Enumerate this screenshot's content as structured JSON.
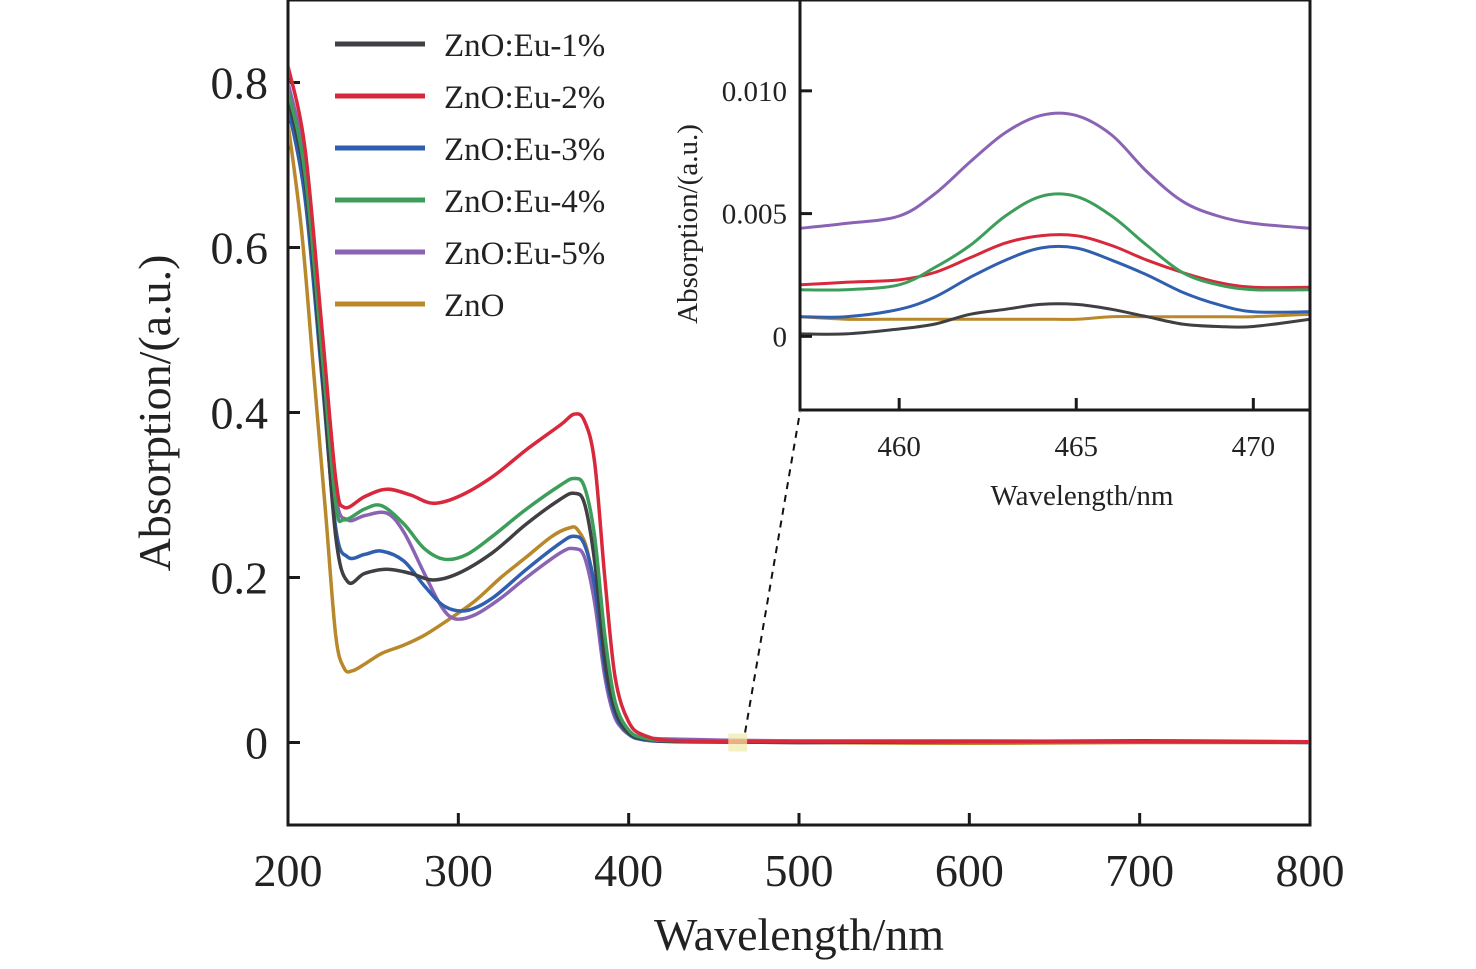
{
  "chart_data": [
    {
      "id": "main",
      "type": "line",
      "title": "",
      "xlabel": "Wavelength/nm",
      "ylabel": "Absorption/(a.u.)",
      "xlim": [
        200,
        800
      ],
      "ylim": [
        -0.1,
        0.9
      ],
      "xticks": [
        200,
        300,
        400,
        500,
        600,
        700,
        800
      ],
      "xtick_labels": [
        "200",
        "300",
        "400",
        "500",
        "600",
        "700",
        "800"
      ],
      "yticks": [
        0,
        0.2,
        0.4,
        0.6,
        0.8
      ],
      "ytick_labels": [
        "0",
        "0.2",
        "0.4",
        "0.6",
        "0.8"
      ],
      "grid": false,
      "legend_position": "top-left",
      "series": [
        {
          "name": "ZnO:Eu-1%",
          "color": "#3f3f44",
          "x": [
            200,
            210,
            220,
            228,
            235,
            245,
            258,
            272,
            285,
            300,
            320,
            340,
            360,
            368,
            374,
            380,
            386,
            392,
            400,
            410,
            430,
            500,
            600,
            700,
            800
          ],
          "y": [
            0.78,
            0.68,
            0.45,
            0.25,
            0.195,
            0.205,
            0.21,
            0.205,
            0.197,
            0.205,
            0.23,
            0.265,
            0.295,
            0.302,
            0.29,
            0.22,
            0.1,
            0.04,
            0.012,
            0.004,
            0.001,
            0.0,
            0.001,
            0.002,
            0.001
          ]
        },
        {
          "name": "ZnO:Eu-2%",
          "color": "#d8283c",
          "x": [
            200,
            210,
            220,
            228,
            233,
            245,
            258,
            272,
            285,
            300,
            320,
            340,
            360,
            368,
            374,
            380,
            386,
            392,
            400,
            410,
            430,
            500,
            600,
            700,
            800
          ],
          "y": [
            0.82,
            0.72,
            0.5,
            0.32,
            0.285,
            0.298,
            0.307,
            0.3,
            0.29,
            0.298,
            0.322,
            0.355,
            0.385,
            0.398,
            0.39,
            0.34,
            0.2,
            0.08,
            0.025,
            0.008,
            0.002,
            0.001,
            0.001,
            0.001,
            0.001
          ]
        },
        {
          "name": "ZnO:Eu-3%",
          "color": "#2f5fae",
          "x": [
            200,
            210,
            220,
            228,
            235,
            245,
            255,
            268,
            280,
            292,
            305,
            320,
            340,
            360,
            368,
            374,
            380,
            386,
            392,
            400,
            410,
            430,
            500,
            600,
            700,
            800
          ],
          "y": [
            0.77,
            0.66,
            0.44,
            0.26,
            0.225,
            0.228,
            0.232,
            0.22,
            0.19,
            0.165,
            0.16,
            0.175,
            0.21,
            0.242,
            0.25,
            0.24,
            0.19,
            0.09,
            0.035,
            0.01,
            0.003,
            0.001,
            0.0,
            0.001,
            0.001,
            0.0
          ]
        },
        {
          "name": "ZnO:Eu-4%",
          "color": "#3d9d5b",
          "x": [
            200,
            210,
            220,
            228,
            233,
            245,
            255,
            268,
            280,
            292,
            305,
            320,
            340,
            360,
            368,
            374,
            380,
            386,
            392,
            400,
            410,
            430,
            500,
            600,
            700,
            800
          ],
          "y": [
            0.79,
            0.69,
            0.47,
            0.29,
            0.27,
            0.283,
            0.287,
            0.265,
            0.235,
            0.222,
            0.228,
            0.25,
            0.283,
            0.312,
            0.32,
            0.31,
            0.25,
            0.13,
            0.05,
            0.015,
            0.005,
            0.002,
            0.001,
            0.001,
            0.001,
            0.001
          ]
        },
        {
          "name": "ZnO:Eu-5%",
          "color": "#8a63b4",
          "x": [
            200,
            210,
            220,
            228,
            235,
            245,
            258,
            268,
            280,
            290,
            298,
            310,
            325,
            340,
            360,
            368,
            374,
            380,
            386,
            392,
            400,
            410,
            430,
            500,
            600,
            700,
            800
          ],
          "y": [
            0.8,
            0.7,
            0.48,
            0.3,
            0.27,
            0.275,
            0.278,
            0.255,
            0.205,
            0.165,
            0.15,
            0.155,
            0.175,
            0.2,
            0.23,
            0.235,
            0.225,
            0.17,
            0.08,
            0.03,
            0.012,
            0.006,
            0.004,
            0.002,
            0.002,
            0.001,
            0.001
          ]
        },
        {
          "name": "ZnO",
          "color": "#b8882a",
          "x": [
            200,
            208,
            215,
            222,
            228,
            233,
            238,
            245,
            255,
            268,
            280,
            295,
            310,
            325,
            340,
            355,
            365,
            370,
            376,
            382,
            388,
            395,
            405,
            420,
            500,
            600,
            700,
            800
          ],
          "y": [
            0.75,
            0.62,
            0.45,
            0.28,
            0.13,
            0.09,
            0.087,
            0.095,
            0.108,
            0.118,
            0.13,
            0.15,
            0.172,
            0.2,
            0.225,
            0.25,
            0.26,
            0.258,
            0.23,
            0.15,
            0.06,
            0.02,
            0.006,
            0.002,
            0.0,
            -0.001,
            0.0,
            0.0
          ]
        }
      ]
    },
    {
      "id": "inset",
      "type": "line",
      "title": "",
      "xlabel": "Wavelength/nm",
      "ylabel": "Absorption/(a.u.)",
      "xlim": [
        457.2,
        471.6
      ],
      "ylim": [
        -0.003,
        0.0137
      ],
      "xticks": [
        460,
        465,
        470
      ],
      "xtick_labels": [
        "460",
        "465",
        "470"
      ],
      "yticks": [
        0,
        0.005,
        0.01
      ],
      "ytick_labels": [
        "0",
        "0.005",
        "0.010"
      ],
      "grid": false,
      "zoom_region_x": [
        462,
        466
      ],
      "series": [
        {
          "name": "ZnO:Eu-1%",
          "color": "#3f3f44",
          "x": [
            457.2,
            458.5,
            460,
            461,
            462,
            463,
            464,
            465,
            466,
            467,
            468,
            469,
            470,
            471.6
          ],
          "y": [
            0.0001,
            0.0001,
            0.0003,
            0.0005,
            0.0009,
            0.0011,
            0.0013,
            0.0013,
            0.0011,
            0.0008,
            0.0005,
            0.0004,
            0.0004,
            0.0007
          ]
        },
        {
          "name": "ZnO:Eu-2%",
          "color": "#d8283c",
          "x": [
            457.2,
            458.5,
            460,
            461,
            462,
            463,
            464,
            465,
            466,
            467,
            468,
            469,
            470,
            471.6
          ],
          "y": [
            0.0021,
            0.0022,
            0.0023,
            0.0026,
            0.0032,
            0.0038,
            0.0041,
            0.0041,
            0.0037,
            0.0031,
            0.0026,
            0.0022,
            0.002,
            0.002
          ]
        },
        {
          "name": "ZnO:Eu-3%",
          "color": "#2f5fae",
          "x": [
            457.2,
            458.5,
            460,
            461,
            462,
            463,
            464,
            465,
            466,
            467,
            468,
            469,
            470,
            471.6
          ],
          "y": [
            0.0008,
            0.0008,
            0.0011,
            0.0016,
            0.0024,
            0.0031,
            0.0036,
            0.0036,
            0.0031,
            0.0025,
            0.0018,
            0.0013,
            0.001,
            0.001
          ]
        },
        {
          "name": "ZnO:Eu-4%",
          "color": "#3d9d5b",
          "x": [
            457.2,
            458.5,
            460,
            461,
            462,
            463,
            464,
            465,
            466,
            467,
            468,
            469,
            470,
            471.6
          ],
          "y": [
            0.0019,
            0.0019,
            0.0021,
            0.0028,
            0.0037,
            0.0049,
            0.0057,
            0.0057,
            0.0049,
            0.0037,
            0.0026,
            0.0021,
            0.0019,
            0.0019
          ]
        },
        {
          "name": "ZnO:Eu-5%",
          "color": "#8a63b4",
          "x": [
            457.2,
            458.5,
            460,
            461,
            462,
            463,
            464,
            465,
            466,
            467,
            468,
            469,
            470,
            471.6
          ],
          "y": [
            0.0044,
            0.0046,
            0.0049,
            0.0058,
            0.0071,
            0.0083,
            0.009,
            0.009,
            0.0082,
            0.0067,
            0.0055,
            0.0049,
            0.0046,
            0.0044
          ]
        },
        {
          "name": "ZnO",
          "color": "#b8882a",
          "x": [
            457.2,
            458.5,
            460,
            461,
            462,
            463,
            464,
            465,
            466,
            467,
            468,
            469,
            470,
            471.6
          ],
          "y": [
            0.0008,
            0.0007,
            0.0007,
            0.0007,
            0.0007,
            0.0007,
            0.0007,
            0.0007,
            0.0008,
            0.0008,
            0.0008,
            0.0008,
            0.0008,
            0.0009
          ]
        }
      ]
    }
  ]
}
